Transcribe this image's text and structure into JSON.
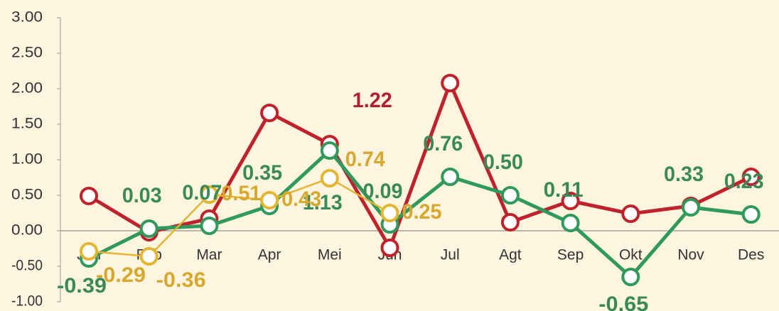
{
  "chart_data": {
    "type": "line",
    "categories": [
      "Jan",
      "Feb",
      "Mar",
      "Apr",
      "Mei",
      "Jun",
      "Jul",
      "Agt",
      "Sep",
      "Okt",
      "Nov",
      "Des"
    ],
    "series": [
      {
        "color": "#c0222c",
        "label_color": "#b02030",
        "values": [
          0.49,
          -0.02,
          0.17,
          1.66,
          1.22,
          -0.24,
          2.08,
          0.12,
          0.42,
          0.24,
          0.35,
          0.76
        ],
        "value_labels": [
          null,
          null,
          null,
          null,
          "1.22",
          null,
          null,
          null,
          null,
          null,
          null,
          null
        ]
      },
      {
        "color": "#2f9a5c",
        "label_color": "#3a8a58",
        "values": [
          -0.39,
          0.03,
          0.07,
          0.35,
          1.13,
          0.09,
          0.76,
          0.5,
          0.11,
          -0.65,
          0.33,
          0.23
        ],
        "value_labels": [
          "-0.39",
          "0.03",
          "0.07",
          "0.35",
          "1.13",
          "0.09",
          "0.76",
          "0.50",
          "0.11",
          "-0.65",
          "0.33",
          "0.23"
        ]
      },
      {
        "color": "#e4b530",
        "label_color": "#d8a82e",
        "values": [
          -0.29,
          -0.36,
          0.51,
          0.43,
          0.74,
          0.25,
          null,
          null,
          null,
          null,
          null,
          null
        ],
        "value_labels": [
          "-0.29",
          "-0.36",
          "0.51",
          "0.43",
          "0.74",
          "0.25",
          null,
          null,
          null,
          null,
          null,
          null
        ]
      }
    ],
    "ylim": [
      -1,
      3
    ],
    "yticks": [
      {
        "value": -1,
        "label": "-1.00"
      },
      {
        "value": -0.5,
        "label": "-0.50"
      },
      {
        "value": 0,
        "label": "0.00"
      },
      {
        "value": 0.5,
        "label": "0.50"
      },
      {
        "value": 1,
        "label": "1.00"
      },
      {
        "value": 1.5,
        "label": "1.50"
      },
      {
        "value": 2,
        "label": "2.00"
      },
      {
        "value": 2.5,
        "label": "2.50"
      },
      {
        "value": 3,
        "label": "3.00"
      }
    ]
  }
}
